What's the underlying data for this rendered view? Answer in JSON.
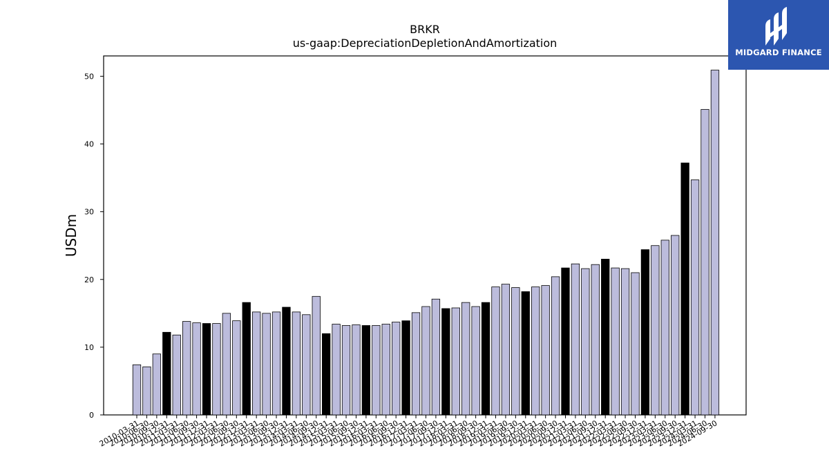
{
  "logo": {
    "text": "MIDGARD FINANCE"
  },
  "chart_data": {
    "type": "bar",
    "title": "BRKR",
    "subtitle": "us-gaap:DepreciationDepletionAndAmortization",
    "ylabel": "USDm",
    "xlabel": "",
    "ylim": [
      0,
      53
    ],
    "yticks": [
      0,
      10,
      20,
      30,
      40,
      50
    ],
    "grid": false,
    "colors": {
      "quarter": "#bcbcdc",
      "fiscal_year": "#000000",
      "edge": "#000000"
    },
    "categories": [
      "2010-03-31",
      "2010-06-30",
      "2010-09-30",
      "2010-12-31",
      "2011-03-31",
      "2011-06-30",
      "2011-09-30",
      "2011-12-31",
      "2012-03-31",
      "2012-06-30",
      "2012-09-30",
      "2012-12-31",
      "2013-03-31",
      "2013-06-30",
      "2013-09-30",
      "2013-12-31",
      "2014-03-31",
      "2014-06-30",
      "2014-09-30",
      "2014-12-31",
      "2015-03-31",
      "2015-06-30",
      "2015-09-30",
      "2015-12-31",
      "2016-03-31",
      "2016-06-30",
      "2016-09-30",
      "2016-12-31",
      "2017-03-31",
      "2017-06-30",
      "2017-09-30",
      "2017-12-31",
      "2018-03-31",
      "2018-06-30",
      "2018-09-30",
      "2018-12-31",
      "2019-03-31",
      "2019-06-30",
      "2019-09-30",
      "2019-12-31",
      "2020-03-31",
      "2020-06-30",
      "2020-09-30",
      "2020-12-31",
      "2021-03-31",
      "2021-06-30",
      "2021-09-30",
      "2021-12-31",
      "2022-03-31",
      "2022-06-30",
      "2022-09-30",
      "2022-12-31",
      "2023-03-31",
      "2023-06-30",
      "2023-09-30",
      "2023-12-31",
      "2024-03-31",
      "2024-06-30",
      "2024-09-30"
    ],
    "values": [
      7.4,
      7.1,
      9.0,
      12.2,
      11.8,
      13.8,
      13.6,
      13.5,
      13.5,
      15.0,
      13.9,
      16.6,
      15.2,
      15.0,
      15.2,
      15.9,
      15.2,
      14.8,
      17.5,
      12.0,
      13.4,
      13.2,
      13.3,
      13.2,
      13.2,
      13.4,
      13.7,
      13.9,
      15.1,
      16.0,
      17.1,
      15.7,
      15.8,
      16.6,
      16.0,
      16.6,
      18.9,
      19.3,
      18.8,
      18.2,
      18.9,
      19.1,
      20.4,
      21.7,
      22.3,
      21.6,
      22.2,
      23.0,
      21.7,
      21.6,
      21.0,
      24.4,
      25.0,
      25.8,
      26.5,
      37.2,
      34.7,
      45.1,
      50.9
    ],
    "fiscal_year_end_flags": [
      0,
      0,
      0,
      1,
      0,
      0,
      0,
      1,
      0,
      0,
      0,
      1,
      0,
      0,
      0,
      1,
      0,
      0,
      0,
      1,
      0,
      0,
      0,
      1,
      0,
      0,
      0,
      1,
      0,
      0,
      0,
      1,
      0,
      0,
      0,
      1,
      0,
      0,
      0,
      1,
      0,
      0,
      0,
      1,
      0,
      0,
      0,
      1,
      0,
      0,
      0,
      1,
      0,
      0,
      0,
      1,
      0,
      0,
      0
    ]
  }
}
